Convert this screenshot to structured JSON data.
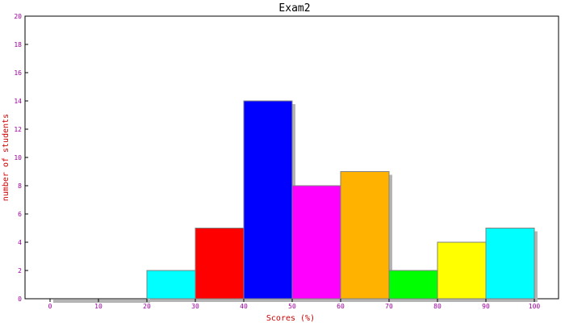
{
  "chart_data": {
    "type": "bar",
    "title": "Exam2",
    "xlabel": "Scores (%)",
    "ylabel": "number of students",
    "bins": [
      {
        "range": [
          0,
          10
        ],
        "value": 0,
        "color": "#00ffff"
      },
      {
        "range": [
          10,
          20
        ],
        "value": 0,
        "color": "#ff0000"
      },
      {
        "range": [
          20,
          30
        ],
        "value": 2,
        "color": "#00ffff"
      },
      {
        "range": [
          30,
          40
        ],
        "value": 5,
        "color": "#ff0000"
      },
      {
        "range": [
          40,
          50
        ],
        "value": 14,
        "color": "#0000ff"
      },
      {
        "range": [
          50,
          60
        ],
        "value": 8,
        "color": "#ff00ff"
      },
      {
        "range": [
          60,
          70
        ],
        "value": 9,
        "color": "#ffb300"
      },
      {
        "range": [
          70,
          80
        ],
        "value": 2,
        "color": "#00ff00"
      },
      {
        "range": [
          80,
          90
        ],
        "value": 4,
        "color": "#ffff00"
      },
      {
        "range": [
          90,
          100
        ],
        "value": 5,
        "color": "#00ffff"
      }
    ],
    "xticks": [
      "0",
      "10",
      "20",
      "30",
      "40",
      "50",
      "60",
      "70",
      "80",
      "90",
      "100"
    ],
    "yticks": [
      "0",
      "2",
      "4",
      "6",
      "8",
      "10",
      "12",
      "14",
      "16",
      "18",
      "20"
    ],
    "xlim": [
      0,
      100
    ],
    "ylim": [
      0,
      20
    ],
    "grid": false,
    "bar_shadow_color": "#b4b4b4",
    "tick_label_color": "#9b009b",
    "axis_label_color": "#cc0000"
  }
}
